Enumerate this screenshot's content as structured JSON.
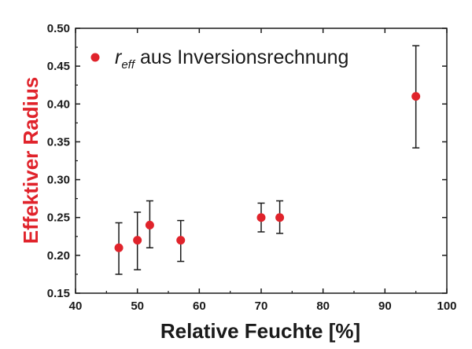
{
  "colors": {
    "marker": "#e0232b",
    "ylabel": "#e0232b",
    "axis": "#1a1a1a",
    "errorbar": "#1a1a1a"
  },
  "chart_data": {
    "type": "scatter",
    "xlabel": "Relative Feuchte [%]",
    "ylabel": "Effektiver Radius",
    "xlim": [
      40,
      100
    ],
    "ylim": [
      0.15,
      0.5
    ],
    "xticks": [
      40,
      50,
      60,
      70,
      80,
      90,
      100
    ],
    "yticks": [
      "0.15",
      "0.20",
      "0.25",
      "0.30",
      "0.35",
      "0.40",
      "0.45",
      "0.50"
    ],
    "legend": {
      "position": "top-left",
      "symbol": "r",
      "subscript": "eff",
      "text": " aus Inversionsrechnung"
    },
    "grid": false,
    "series": [
      {
        "name": "r_eff aus Inversionsrechnung",
        "points": [
          {
            "x": 47,
            "y": 0.21,
            "ylow": 0.175,
            "yhigh": 0.243
          },
          {
            "x": 50,
            "y": 0.22,
            "ylow": 0.181,
            "yhigh": 0.257
          },
          {
            "x": 52,
            "y": 0.24,
            "ylow": 0.21,
            "yhigh": 0.272
          },
          {
            "x": 57,
            "y": 0.22,
            "ylow": 0.192,
            "yhigh": 0.246
          },
          {
            "x": 70,
            "y": 0.25,
            "ylow": 0.231,
            "yhigh": 0.269
          },
          {
            "x": 73,
            "y": 0.25,
            "ylow": 0.229,
            "yhigh": 0.272
          },
          {
            "x": 95,
            "y": 0.41,
            "ylow": 0.342,
            "yhigh": 0.477
          }
        ]
      }
    ]
  }
}
